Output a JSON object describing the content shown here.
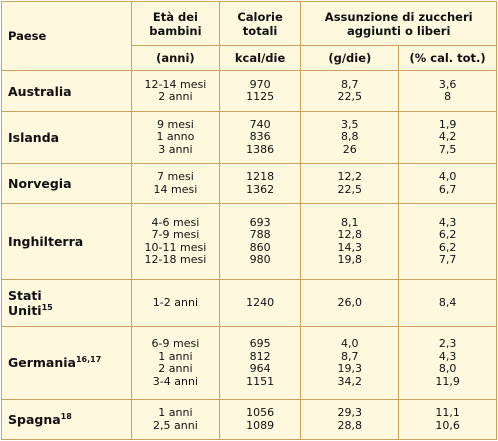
{
  "header": {
    "country": "Paese",
    "age": "Età dei bambini",
    "calories": "Calorie totali",
    "sugars": "Assunzione di zuccheri aggiunti o liberi",
    "age_unit": "(anni)",
    "calories_unit": "kcal/die",
    "sugars_g_unit": "(g/die)",
    "sugars_pct_unit": "(% cal. tot.)"
  },
  "table": {
    "rows": [
      {
        "country": "Australia",
        "ages": [
          "12-14 mesi",
          "2 anni"
        ],
        "kcal": [
          "970",
          "1125"
        ],
        "g": [
          "8,7",
          "22,5"
        ],
        "pct": [
          "3,6",
          "8"
        ]
      },
      {
        "country": "Islanda",
        "ages": [
          "9 mesi",
          "1 anno",
          "3 anni"
        ],
        "kcal": [
          "740",
          "836",
          "1386"
        ],
        "g": [
          "3,5",
          "8,8",
          "26"
        ],
        "pct": [
          "1,9",
          "4,2",
          "7,5"
        ]
      },
      {
        "country": "Norvegia",
        "ages": [
          "7 mesi",
          "14 mesi"
        ],
        "kcal": [
          "1218",
          "1362"
        ],
        "g": [
          "12,2",
          "22,5"
        ],
        "pct": [
          "4,0",
          "6,7"
        ]
      },
      {
        "country": "Inghilterra",
        "ages": [
          "4-6 mesi",
          "7-9 mesi",
          "10-11 mesi",
          "12-18 mesi"
        ],
        "kcal": [
          "693",
          "788",
          "860",
          "980"
        ],
        "g": [
          "8,1",
          "12,8",
          "14,3",
          "19,8"
        ],
        "pct": [
          "4,3",
          "6,2",
          "6,2",
          "7,7"
        ]
      },
      {
        "country": "Stati Uniti",
        "sup": "15",
        "ages": [
          "1-2 anni"
        ],
        "kcal": [
          "1240"
        ],
        "g": [
          "26,0"
        ],
        "pct": [
          "8,4"
        ]
      },
      {
        "country": "Germania",
        "sup": "16,17",
        "ages": [
          "6-9 mesi",
          "1 anni",
          "2 anni",
          "3-4 anni"
        ],
        "kcal": [
          "695",
          "812",
          "964",
          "1151"
        ],
        "g": [
          "4,0",
          "8,7",
          "19,3",
          "34,2"
        ],
        "pct": [
          "2,3",
          "4,3",
          "8,0",
          "11,9"
        ]
      },
      {
        "country": "Spagna",
        "sup": "18",
        "ages": [
          "1 anni",
          "2,5 anni"
        ],
        "kcal": [
          "1056",
          "1089"
        ],
        "g": [
          "29,3",
          "28,8"
        ],
        "pct": [
          "11,1",
          "10,6"
        ]
      }
    ]
  }
}
